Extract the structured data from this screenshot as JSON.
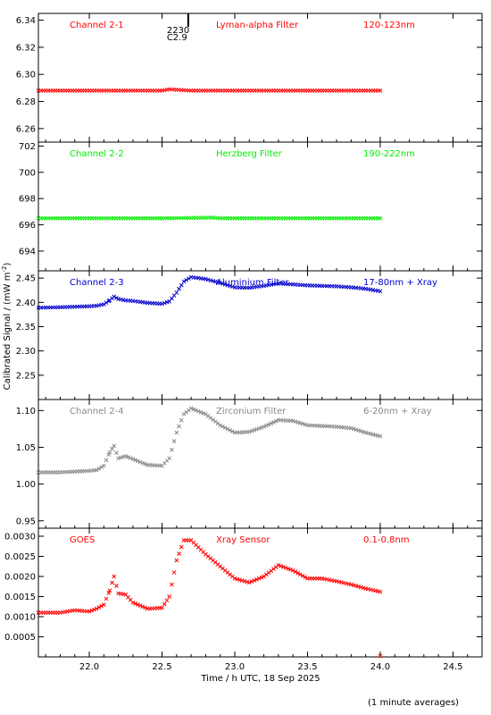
{
  "chart_data": {
    "type": "scatter",
    "x_axis": {
      "label": "Time / h UTC, 18 Sep 2025",
      "range": [
        21.65,
        24.7
      ],
      "ticks": [
        22.0,
        22.5,
        23.0,
        23.5,
        24.0,
        24.5
      ],
      "tick_labels": [
        "22.0",
        "22.5",
        "23.0",
        "23.5",
        "24.0",
        "24.5"
      ]
    },
    "y_axis_label": "Calibrated Signal / (mW m",
    "y_axis_label_sup": "-2",
    "y_axis_label_end": ")",
    "marker_annotation": {
      "x": 22.68,
      "lines": [
        "2230",
        "C2.9"
      ]
    },
    "footer_note": "(1 minute averages)",
    "panels": [
      {
        "channel": "Channel 2-1",
        "filter": "Lyman-alpha Filter",
        "band": "120-123nm",
        "color": "#ff0000",
        "ylim": [
          6.25,
          6.345
        ],
        "yticks": [
          6.26,
          6.28,
          6.3,
          6.32,
          6.34
        ],
        "ytick_labels": [
          "6.26",
          "6.28",
          "6.30",
          "6.32",
          "6.34"
        ],
        "points": [
          [
            21.65,
            6.288
          ],
          [
            22.2,
            6.288
          ],
          [
            22.5,
            6.288
          ],
          [
            22.55,
            6.289
          ],
          [
            22.7,
            6.288
          ],
          [
            23.0,
            6.288
          ],
          [
            23.5,
            6.288
          ],
          [
            24.0,
            6.288
          ]
        ]
      },
      {
        "channel": "Channel 2-2",
        "filter": "Herzberg Filter",
        "band": "190-222nm",
        "color": "#00ee00",
        "ylim": [
          692.5,
          702.3
        ],
        "yticks": [
          694,
          696,
          698,
          700,
          702
        ],
        "ytick_labels": [
          "694",
          "696",
          "698",
          "700",
          "702"
        ],
        "points": [
          [
            21.65,
            696.5
          ],
          [
            22.5,
            696.5
          ],
          [
            22.85,
            696.55
          ],
          [
            22.9,
            696.5
          ],
          [
            23.5,
            696.5
          ],
          [
            24.0,
            696.5
          ]
        ]
      },
      {
        "channel": "Channel 2-3",
        "filter": "Aluminium Filter",
        "band": "17-80nm + Xray",
        "color": "#0000cc",
        "ylim": [
          2.2,
          2.465
        ],
        "yticks": [
          2.25,
          2.3,
          2.35,
          2.4,
          2.45
        ],
        "ytick_labels": [
          "2.25",
          "2.30",
          "2.35",
          "2.40",
          "2.45"
        ],
        "points": [
          [
            21.65,
            2.389
          ],
          [
            21.8,
            2.39
          ],
          [
            21.9,
            2.391
          ],
          [
            22.0,
            2.392
          ],
          [
            22.05,
            2.393
          ],
          [
            22.1,
            2.396
          ],
          [
            22.14,
            2.404
          ],
          [
            22.17,
            2.412
          ],
          [
            22.2,
            2.407
          ],
          [
            22.25,
            2.404
          ],
          [
            22.3,
            2.403
          ],
          [
            22.4,
            2.399
          ],
          [
            22.5,
            2.397
          ],
          [
            22.55,
            2.402
          ],
          [
            22.6,
            2.42
          ],
          [
            22.65,
            2.443
          ],
          [
            22.7,
            2.452
          ],
          [
            22.8,
            2.448
          ],
          [
            22.9,
            2.44
          ],
          [
            23.0,
            2.431
          ],
          [
            23.1,
            2.43
          ],
          [
            23.2,
            2.434
          ],
          [
            23.3,
            2.439
          ],
          [
            23.4,
            2.437
          ],
          [
            23.5,
            2.435
          ],
          [
            23.6,
            2.434
          ],
          [
            23.7,
            2.433
          ],
          [
            23.8,
            2.431
          ],
          [
            23.9,
            2.428
          ],
          [
            24.0,
            2.423
          ]
        ]
      },
      {
        "channel": "Channel 2-4",
        "filter": "Zirconium Filter",
        "band": "6-20nm + Xray",
        "color": "#888888",
        "ylim": [
          0.94,
          1.115
        ],
        "yticks": [
          0.95,
          1.0,
          1.05,
          1.1
        ],
        "ytick_labels": [
          "0.95",
          "1.00",
          "1.05",
          "1.10"
        ],
        "points": [
          [
            21.65,
            1.016
          ],
          [
            21.8,
            1.016
          ],
          [
            21.9,
            1.017
          ],
          [
            22.0,
            1.018
          ],
          [
            22.05,
            1.019
          ],
          [
            22.1,
            1.025
          ],
          [
            22.14,
            1.043
          ],
          [
            22.17,
            1.052
          ],
          [
            22.2,
            1.035
          ],
          [
            22.25,
            1.038
          ],
          [
            22.3,
            1.034
          ],
          [
            22.4,
            1.026
          ],
          [
            22.5,
            1.025
          ],
          [
            22.55,
            1.035
          ],
          [
            22.6,
            1.07
          ],
          [
            22.65,
            1.095
          ],
          [
            22.7,
            1.103
          ],
          [
            22.8,
            1.095
          ],
          [
            22.9,
            1.08
          ],
          [
            23.0,
            1.07
          ],
          [
            23.1,
            1.071
          ],
          [
            23.2,
            1.078
          ],
          [
            23.3,
            1.087
          ],
          [
            23.4,
            1.086
          ],
          [
            23.5,
            1.08
          ],
          [
            23.6,
            1.079
          ],
          [
            23.7,
            1.078
          ],
          [
            23.8,
            1.076
          ],
          [
            23.9,
            1.07
          ],
          [
            24.0,
            1.065
          ]
        ]
      },
      {
        "channel": "GOES",
        "filter": "Xray Sensor",
        "band": "0.1-0.8nm",
        "color": "#ff0000",
        "ylim": [
          0.0,
          0.0032
        ],
        "yticks": [
          0.0005,
          0.001,
          0.0015,
          0.002,
          0.0025,
          0.003
        ],
        "ytick_labels": [
          "0.0005",
          "0.0010",
          "0.0015",
          "0.0020",
          "0.0025",
          "0.0030"
        ],
        "points": [
          [
            21.65,
            0.0011
          ],
          [
            21.8,
            0.0011
          ],
          [
            21.9,
            0.00116
          ],
          [
            22.0,
            0.00113
          ],
          [
            22.05,
            0.0012
          ],
          [
            22.1,
            0.0013
          ],
          [
            22.14,
            0.00165
          ],
          [
            22.17,
            0.002
          ],
          [
            22.2,
            0.00158
          ],
          [
            22.25,
            0.00155
          ],
          [
            22.3,
            0.00135
          ],
          [
            22.4,
            0.0012
          ],
          [
            22.5,
            0.00122
          ],
          [
            22.55,
            0.0015
          ],
          [
            22.6,
            0.0024
          ],
          [
            22.65,
            0.0029
          ],
          [
            22.7,
            0.0029
          ],
          [
            22.8,
            0.00255
          ],
          [
            22.9,
            0.00225
          ],
          [
            23.0,
            0.00195
          ],
          [
            23.1,
            0.00185
          ],
          [
            23.2,
            0.002
          ],
          [
            23.3,
            0.00228
          ],
          [
            23.4,
            0.00215
          ],
          [
            23.5,
            0.00195
          ],
          [
            23.6,
            0.00195
          ],
          [
            23.7,
            0.00188
          ],
          [
            23.8,
            0.0018
          ],
          [
            23.9,
            0.0017
          ],
          [
            24.0,
            0.00162
          ]
        ],
        "extra_points": [
          [
            24.0,
            2e-05
          ]
        ]
      }
    ]
  }
}
